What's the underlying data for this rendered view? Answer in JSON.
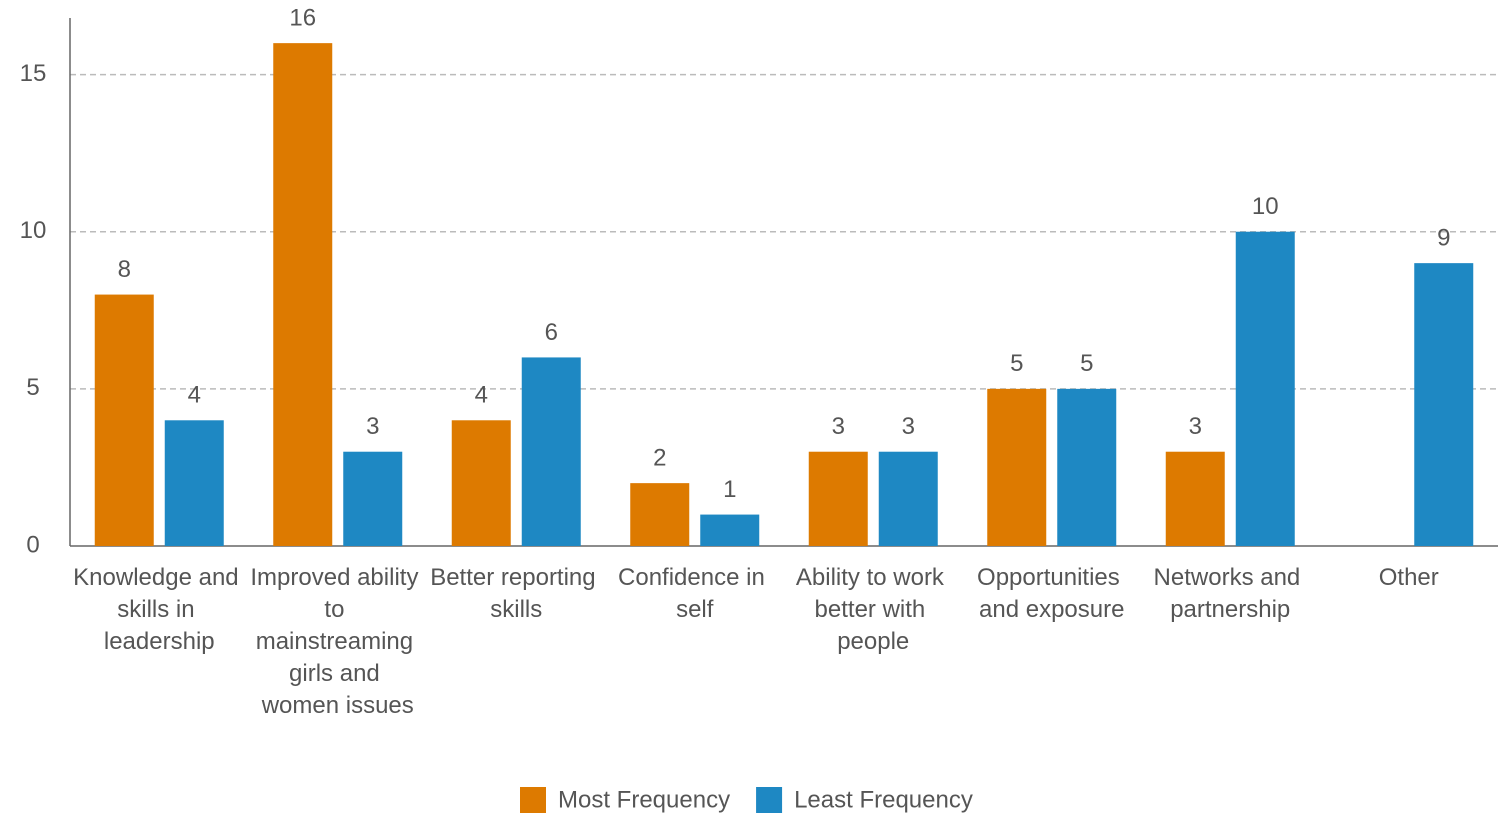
{
  "chart_data": {
    "type": "bar",
    "categories": [
      "Knowledge and skills in leadership",
      "Improved ability to mainstreaming girls and women issues",
      "Better reporting skills",
      "Confidence in self",
      "Ability to work better with people",
      "Opportunities and exposure",
      "Networks and partnership",
      "Other"
    ],
    "series": [
      {
        "name": "Most Frequency",
        "color": "#dd7a00",
        "values": [
          8,
          16,
          4,
          2,
          3,
          5,
          3,
          null
        ]
      },
      {
        "name": "Least Frequency",
        "color": "#1e88c3",
        "values": [
          4,
          3,
          6,
          1,
          3,
          5,
          10,
          9
        ]
      }
    ],
    "ylim": [
      0,
      16.8
    ],
    "yticks": [
      0,
      5,
      10,
      15
    ],
    "grid": true,
    "legend": "bottom"
  }
}
